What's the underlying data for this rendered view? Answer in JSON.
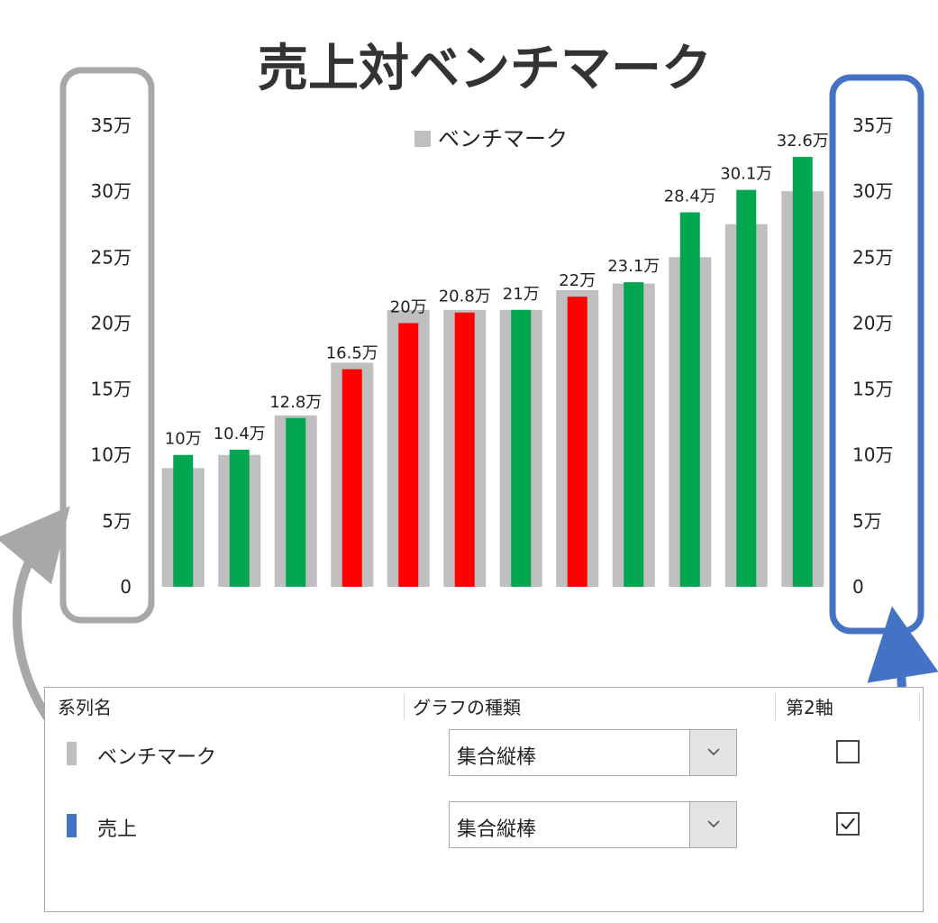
{
  "chart_data": {
    "type": "bar",
    "title": "売上対ベンチマーク",
    "legend": {
      "position": "top",
      "entries": [
        "ベンチマーク"
      ]
    },
    "y_ticks": [
      "0",
      "5万",
      "10万",
      "15万",
      "20万",
      "25万",
      "30万",
      "35万"
    ],
    "ylim": [
      0,
      350000
    ],
    "series": [
      {
        "name": "ベンチマーク",
        "color": "#bfbfbf",
        "axis": "primary",
        "values": [
          90000,
          100000,
          130000,
          170000,
          210000,
          210000,
          210000,
          225000,
          230000,
          250000,
          275000,
          300000
        ]
      },
      {
        "name": "売上",
        "axis": "secondary",
        "values": [
          100000,
          104000,
          128000,
          165000,
          200000,
          208000,
          210000,
          220000,
          231000,
          284000,
          301000,
          326000
        ],
        "data_labels": [
          "10万",
          "10.4万",
          "12.8万",
          "16.5万",
          "20万",
          "20.8万",
          "21万",
          "22万",
          "23.1万",
          "28.4万",
          "30.1万",
          "32.6万"
        ],
        "colors": [
          "#00a650",
          "#00a650",
          "#00a650",
          "#ff0000",
          "#ff0000",
          "#ff0000",
          "#00a650",
          "#ff0000",
          "#00a650",
          "#00a650",
          "#00a650",
          "#00a650"
        ]
      }
    ],
    "highlight_colors": {
      "primary_axis_box": "#a0a0a0",
      "secondary_axis_box": "#4472c4"
    }
  },
  "panel": {
    "headers": {
      "series_name": "系列名",
      "chart_type": "グラフの種類",
      "secondary_axis": "第2軸"
    },
    "rows": [
      {
        "name": "ベンチマーク",
        "swatch_color": "#bfbfbf",
        "chart_type": "集合縦棒",
        "secondary_axis": false
      },
      {
        "name": "売上",
        "swatch_color": "#4472c4",
        "chart_type": "集合縦棒",
        "secondary_axis": true
      }
    ]
  }
}
